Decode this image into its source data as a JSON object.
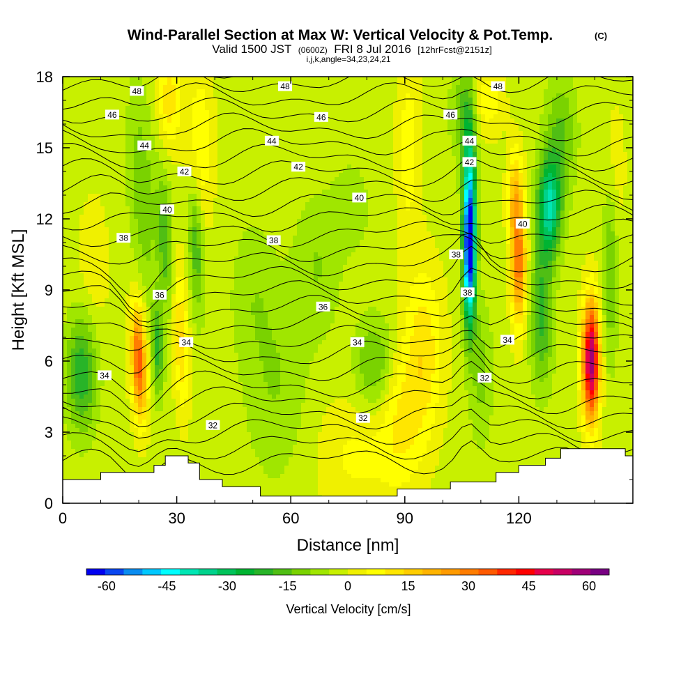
{
  "chart_data": {
    "type": "heatmap",
    "title": "Wind-Parallel Section at Max W: Vertical Velocity & Pot.Temp.",
    "title_tag": "(C)",
    "subtitle_parts": [
      "Valid 1500 JST",
      "(0600Z)",
      "FRI 8 Jul 2016",
      "[12hrFcst@2151z]"
    ],
    "subtitle2": "i,j,k,angle=34,23,24,21",
    "xlabel": "Distance [nm]",
    "ylabel": "Height [Kft MSL]",
    "xlim": [
      0,
      150
    ],
    "ylim": [
      0,
      18
    ],
    "x_ticks": [
      0,
      30,
      60,
      90,
      120
    ],
    "x_tick_labels": [
      "0",
      "30",
      "60",
      "90",
      "120"
    ],
    "y_ticks": [
      0,
      3,
      6,
      9,
      12,
      15,
      18
    ],
    "y_tick_labels": [
      "0",
      "3",
      "6",
      "9",
      "12",
      "15",
      "18"
    ],
    "colorbar": {
      "label": "Vertical Velocity [cm/s]",
      "min": -65,
      "max": 65,
      "step": 5,
      "tick_values": [
        -60,
        -45,
        -30,
        -15,
        0,
        15,
        30,
        45,
        60
      ],
      "tick_labels": [
        "-60",
        "-45",
        "-30",
        "-15",
        "0",
        "15",
        "30",
        "45",
        "60"
      ],
      "colors": [
        "#0000f0",
        "#0a46f0",
        "#0a8cf0",
        "#00c8ff",
        "#00ffff",
        "#00e6b4",
        "#00d28c",
        "#00c35a",
        "#00b432",
        "#28b428",
        "#50be14",
        "#7ad200",
        "#a0e600",
        "#c8f000",
        "#f0f000",
        "#ffff00",
        "#ffe600",
        "#ffcd00",
        "#ffb400",
        "#ff9b00",
        "#ff7d00",
        "#ff5a00",
        "#ff2800",
        "#ff0000",
        "#e6004b",
        "#c80064",
        "#a00078",
        "#780082"
      ]
    },
    "terrain_top_kft": [
      [
        0,
        1.0
      ],
      [
        10,
        1.0
      ],
      [
        10,
        1.3
      ],
      [
        24,
        1.3
      ],
      [
        24,
        1.6
      ],
      [
        27,
        1.6
      ],
      [
        27,
        2.0
      ],
      [
        33,
        2.0
      ],
      [
        33,
        1.7
      ],
      [
        36,
        1.7
      ],
      [
        36,
        1.0
      ],
      [
        42,
        1.0
      ],
      [
        42,
        0.7
      ],
      [
        52,
        0.7
      ],
      [
        52,
        0.3
      ],
      [
        88,
        0.3
      ],
      [
        88,
        0.6
      ],
      [
        102,
        0.6
      ],
      [
        102,
        0.9
      ],
      [
        114,
        0.9
      ],
      [
        114,
        1.3
      ],
      [
        120,
        1.3
      ],
      [
        120,
        1.6
      ],
      [
        127,
        1.6
      ],
      [
        127,
        1.9
      ],
      [
        131,
        1.9
      ],
      [
        131,
        2.3
      ],
      [
        148,
        2.3
      ],
      [
        148,
        2.0
      ],
      [
        150,
        2.0
      ]
    ],
    "theta_contour_labels": [
      {
        "value": "48",
        "x": 19.5,
        "y": 17.4
      },
      {
        "value": "48",
        "x": 58.5,
        "y": 17.6
      },
      {
        "value": "48",
        "x": 114.5,
        "y": 17.6
      },
      {
        "value": "46",
        "x": 13,
        "y": 16.4
      },
      {
        "value": "46",
        "x": 68,
        "y": 16.3
      },
      {
        "value": "46",
        "x": 102,
        "y": 16.4
      },
      {
        "value": "44",
        "x": 21.5,
        "y": 15.1
      },
      {
        "value": "44",
        "x": 55,
        "y": 15.3
      },
      {
        "value": "44",
        "x": 107,
        "y": 15.3
      },
      {
        "value": "42",
        "x": 32,
        "y": 14.0
      },
      {
        "value": "42",
        "x": 62,
        "y": 14.2
      },
      {
        "value": "42",
        "x": 107,
        "y": 14.4
      },
      {
        "value": "40",
        "x": 27.5,
        "y": 12.4
      },
      {
        "value": "40",
        "x": 78,
        "y": 12.9
      },
      {
        "value": "40",
        "x": 121,
        "y": 11.8
      },
      {
        "value": "38",
        "x": 16,
        "y": 11.2
      },
      {
        "value": "38",
        "x": 55.5,
        "y": 11.1
      },
      {
        "value": "38",
        "x": 103.5,
        "y": 10.5
      },
      {
        "value": "38",
        "x": 106.5,
        "y": 8.9
      },
      {
        "value": "36",
        "x": 25.5,
        "y": 8.8
      },
      {
        "value": "36",
        "x": 68.5,
        "y": 8.3
      },
      {
        "value": "34",
        "x": 32.5,
        "y": 6.8
      },
      {
        "value": "34",
        "x": 77.5,
        "y": 6.8
      },
      {
        "value": "34",
        "x": 117,
        "y": 6.9
      },
      {
        "value": "34",
        "x": 11,
        "y": 5.4
      },
      {
        "value": "32",
        "x": 111,
        "y": 5.3
      },
      {
        "value": "32",
        "x": 39.5,
        "y": 3.3
      },
      {
        "value": "32",
        "x": 79,
        "y": 3.6
      }
    ]
  }
}
